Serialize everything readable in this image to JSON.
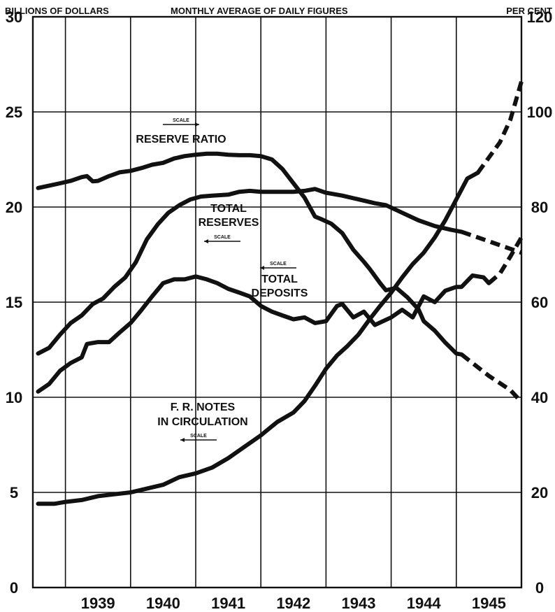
{
  "chart_data": {
    "type": "line",
    "header": {
      "left_axis_unit": "BILLIONS OF DOLLARS",
      "center_note": "MONTHLY AVERAGE OF DAILY FIGURES",
      "right_axis_unit": "PER CENT"
    },
    "x_labels": [
      "1939",
      "1940",
      "1941",
      "1942",
      "1943",
      "1944",
      "1945"
    ],
    "xlim": [
      1938.5,
      1946.0
    ],
    "y_left": {
      "ylim": [
        0,
        30
      ],
      "ticks": [
        "0",
        "5",
        "10",
        "15",
        "20",
        "25",
        "30"
      ]
    },
    "y_right": {
      "ylim": [
        0,
        120
      ],
      "ticks": [
        "0",
        "20",
        "40",
        "60",
        "80",
        "100",
        "120"
      ]
    },
    "series": [
      {
        "name": "RESERVE RATIO",
        "axis": "right",
        "label_lines": [
          "RESERVE RATIO"
        ],
        "scale_note": "SCALE",
        "scale_direction": "right",
        "actual": [
          [
            1938.58,
            84
          ],
          [
            1938.75,
            84.5
          ],
          [
            1938.92,
            85
          ],
          [
            1939.08,
            85.5
          ],
          [
            1939.25,
            86.3
          ],
          [
            1939.33,
            86.5
          ],
          [
            1939.42,
            85.4
          ],
          [
            1939.5,
            85.5
          ],
          [
            1939.67,
            86.5
          ],
          [
            1939.83,
            87.3
          ],
          [
            1940.0,
            87.6
          ],
          [
            1940.17,
            88.2
          ],
          [
            1940.33,
            88.9
          ],
          [
            1940.5,
            89.3
          ],
          [
            1940.67,
            90.2
          ],
          [
            1940.83,
            90.7
          ],
          [
            1941.0,
            91.0
          ],
          [
            1941.17,
            91.2
          ],
          [
            1941.33,
            91.2
          ],
          [
            1941.5,
            91.0
          ],
          [
            1941.67,
            90.9
          ],
          [
            1941.83,
            90.9
          ],
          [
            1942.0,
            90.7
          ],
          [
            1942.17,
            90.0
          ],
          [
            1942.33,
            88.0
          ],
          [
            1942.5,
            85.0
          ],
          [
            1942.67,
            82.0
          ],
          [
            1942.83,
            78.0
          ],
          [
            1942.92,
            77.5
          ],
          [
            1943.08,
            76.5
          ],
          [
            1943.25,
            74.5
          ],
          [
            1943.42,
            71.0
          ],
          [
            1943.58,
            68.5
          ],
          [
            1943.67,
            67.0
          ],
          [
            1943.83,
            64.0
          ],
          [
            1943.92,
            62.5
          ],
          [
            1944.08,
            63.0
          ],
          [
            1944.25,
            61.0
          ],
          [
            1944.42,
            58.5
          ],
          [
            1944.5,
            56.0
          ],
          [
            1944.67,
            54.0
          ],
          [
            1944.83,
            51.5
          ],
          [
            1945.0,
            49.2
          ],
          [
            1945.08,
            49.0
          ]
        ],
        "projected": [
          [
            1945.08,
            49.0
          ],
          [
            1945.5,
            44.5
          ],
          [
            1945.83,
            41.5
          ],
          [
            1946.0,
            39.0
          ]
        ]
      },
      {
        "name": "TOTAL RESERVES",
        "axis": "left",
        "label_lines": [
          "TOTAL",
          "RESERVES"
        ],
        "scale_note": "SCALE",
        "scale_direction": "left",
        "actual": [
          [
            1938.58,
            12.3
          ],
          [
            1938.75,
            12.6
          ],
          [
            1938.92,
            13.3
          ],
          [
            1939.08,
            13.9
          ],
          [
            1939.25,
            14.3
          ],
          [
            1939.42,
            14.9
          ],
          [
            1939.58,
            15.2
          ],
          [
            1939.75,
            15.8
          ],
          [
            1939.92,
            16.3
          ],
          [
            1940.08,
            17.1
          ],
          [
            1940.25,
            18.3
          ],
          [
            1940.42,
            19.1
          ],
          [
            1940.58,
            19.7
          ],
          [
            1940.75,
            20.1
          ],
          [
            1940.92,
            20.4
          ],
          [
            1941.08,
            20.55
          ],
          [
            1941.25,
            20.6
          ],
          [
            1941.5,
            20.65
          ],
          [
            1941.67,
            20.8
          ],
          [
            1941.83,
            20.85
          ],
          [
            1942.0,
            20.8
          ],
          [
            1942.25,
            20.8
          ],
          [
            1942.5,
            20.8
          ],
          [
            1942.67,
            20.85
          ],
          [
            1942.83,
            20.95
          ],
          [
            1943.0,
            20.75
          ],
          [
            1943.25,
            20.6
          ],
          [
            1943.5,
            20.4
          ],
          [
            1943.75,
            20.2
          ],
          [
            1943.92,
            20.1
          ],
          [
            1944.17,
            19.7
          ],
          [
            1944.42,
            19.3
          ],
          [
            1944.67,
            19.0
          ],
          [
            1944.92,
            18.8
          ],
          [
            1945.08,
            18.7
          ]
        ],
        "projected": [
          [
            1945.08,
            18.7
          ],
          [
            1945.5,
            18.2
          ],
          [
            1945.83,
            17.8
          ],
          [
            1946.0,
            17.6
          ]
        ]
      },
      {
        "name": "TOTAL DEPOSITS",
        "axis": "left",
        "label_lines": [
          "TOTAL",
          "DEPOSITS"
        ],
        "scale_note": "SCALE",
        "scale_direction": "left",
        "actual": [
          [
            1938.58,
            10.3
          ],
          [
            1938.75,
            10.7
          ],
          [
            1938.92,
            11.4
          ],
          [
            1939.08,
            11.8
          ],
          [
            1939.25,
            12.1
          ],
          [
            1939.33,
            12.8
          ],
          [
            1939.5,
            12.9
          ],
          [
            1939.67,
            12.9
          ],
          [
            1939.83,
            13.4
          ],
          [
            1940.0,
            13.9
          ],
          [
            1940.17,
            14.6
          ],
          [
            1940.33,
            15.3
          ],
          [
            1940.5,
            16.0
          ],
          [
            1940.67,
            16.2
          ],
          [
            1940.83,
            16.2
          ],
          [
            1941.0,
            16.35
          ],
          [
            1941.17,
            16.2
          ],
          [
            1941.33,
            16.0
          ],
          [
            1941.5,
            15.7
          ],
          [
            1941.67,
            15.5
          ],
          [
            1941.83,
            15.3
          ],
          [
            1942.0,
            14.8
          ],
          [
            1942.17,
            14.5
          ],
          [
            1942.33,
            14.3
          ],
          [
            1942.5,
            14.1
          ],
          [
            1942.67,
            14.2
          ],
          [
            1942.83,
            13.9
          ],
          [
            1943.0,
            14.0
          ],
          [
            1943.17,
            14.8
          ],
          [
            1943.25,
            14.9
          ],
          [
            1943.42,
            14.2
          ],
          [
            1943.58,
            14.5
          ],
          [
            1943.75,
            13.8
          ],
          [
            1944.0,
            14.2
          ],
          [
            1944.17,
            14.6
          ],
          [
            1944.33,
            14.2
          ],
          [
            1944.5,
            15.3
          ],
          [
            1944.67,
            15.0
          ],
          [
            1944.83,
            15.6
          ],
          [
            1945.0,
            15.8
          ],
          [
            1945.08,
            15.8
          ],
          [
            1945.25,
            16.4
          ],
          [
            1945.42,
            16.3
          ],
          [
            1945.5,
            16.0
          ]
        ],
        "projected": [
          [
            1945.5,
            16.0
          ],
          [
            1945.67,
            16.5
          ],
          [
            1945.83,
            17.4
          ],
          [
            1946.0,
            18.4
          ]
        ]
      },
      {
        "name": "F. R. NOTES IN CIRCULATION",
        "axis": "left",
        "label_lines": [
          "F. R. NOTES",
          "IN CIRCULATION"
        ],
        "scale_note": "SCALE",
        "scale_direction": "left",
        "actual": [
          [
            1938.58,
            4.4
          ],
          [
            1938.83,
            4.4
          ],
          [
            1939.0,
            4.5
          ],
          [
            1939.25,
            4.6
          ],
          [
            1939.5,
            4.8
          ],
          [
            1939.75,
            4.9
          ],
          [
            1940.0,
            5.0
          ],
          [
            1940.25,
            5.2
          ],
          [
            1940.5,
            5.4
          ],
          [
            1940.75,
            5.8
          ],
          [
            1941.0,
            6.0
          ],
          [
            1941.25,
            6.3
          ],
          [
            1941.5,
            6.8
          ],
          [
            1941.75,
            7.4
          ],
          [
            1942.0,
            8.0
          ],
          [
            1942.25,
            8.7
          ],
          [
            1942.5,
            9.2
          ],
          [
            1942.67,
            9.8
          ],
          [
            1942.83,
            10.6
          ],
          [
            1943.0,
            11.5
          ],
          [
            1943.17,
            12.2
          ],
          [
            1943.33,
            12.7
          ],
          [
            1943.5,
            13.3
          ],
          [
            1943.67,
            14.1
          ],
          [
            1943.83,
            14.8
          ],
          [
            1944.0,
            15.5
          ],
          [
            1944.17,
            16.3
          ],
          [
            1944.33,
            17.0
          ],
          [
            1944.5,
            17.6
          ],
          [
            1944.67,
            18.4
          ],
          [
            1944.83,
            19.3
          ],
          [
            1945.0,
            20.4
          ],
          [
            1945.17,
            21.5
          ],
          [
            1945.33,
            21.8
          ]
        ],
        "projected": [
          [
            1945.33,
            21.8
          ],
          [
            1945.67,
            23.4
          ],
          [
            1945.83,
            24.6
          ],
          [
            1946.0,
            26.6
          ]
        ]
      }
    ]
  }
}
